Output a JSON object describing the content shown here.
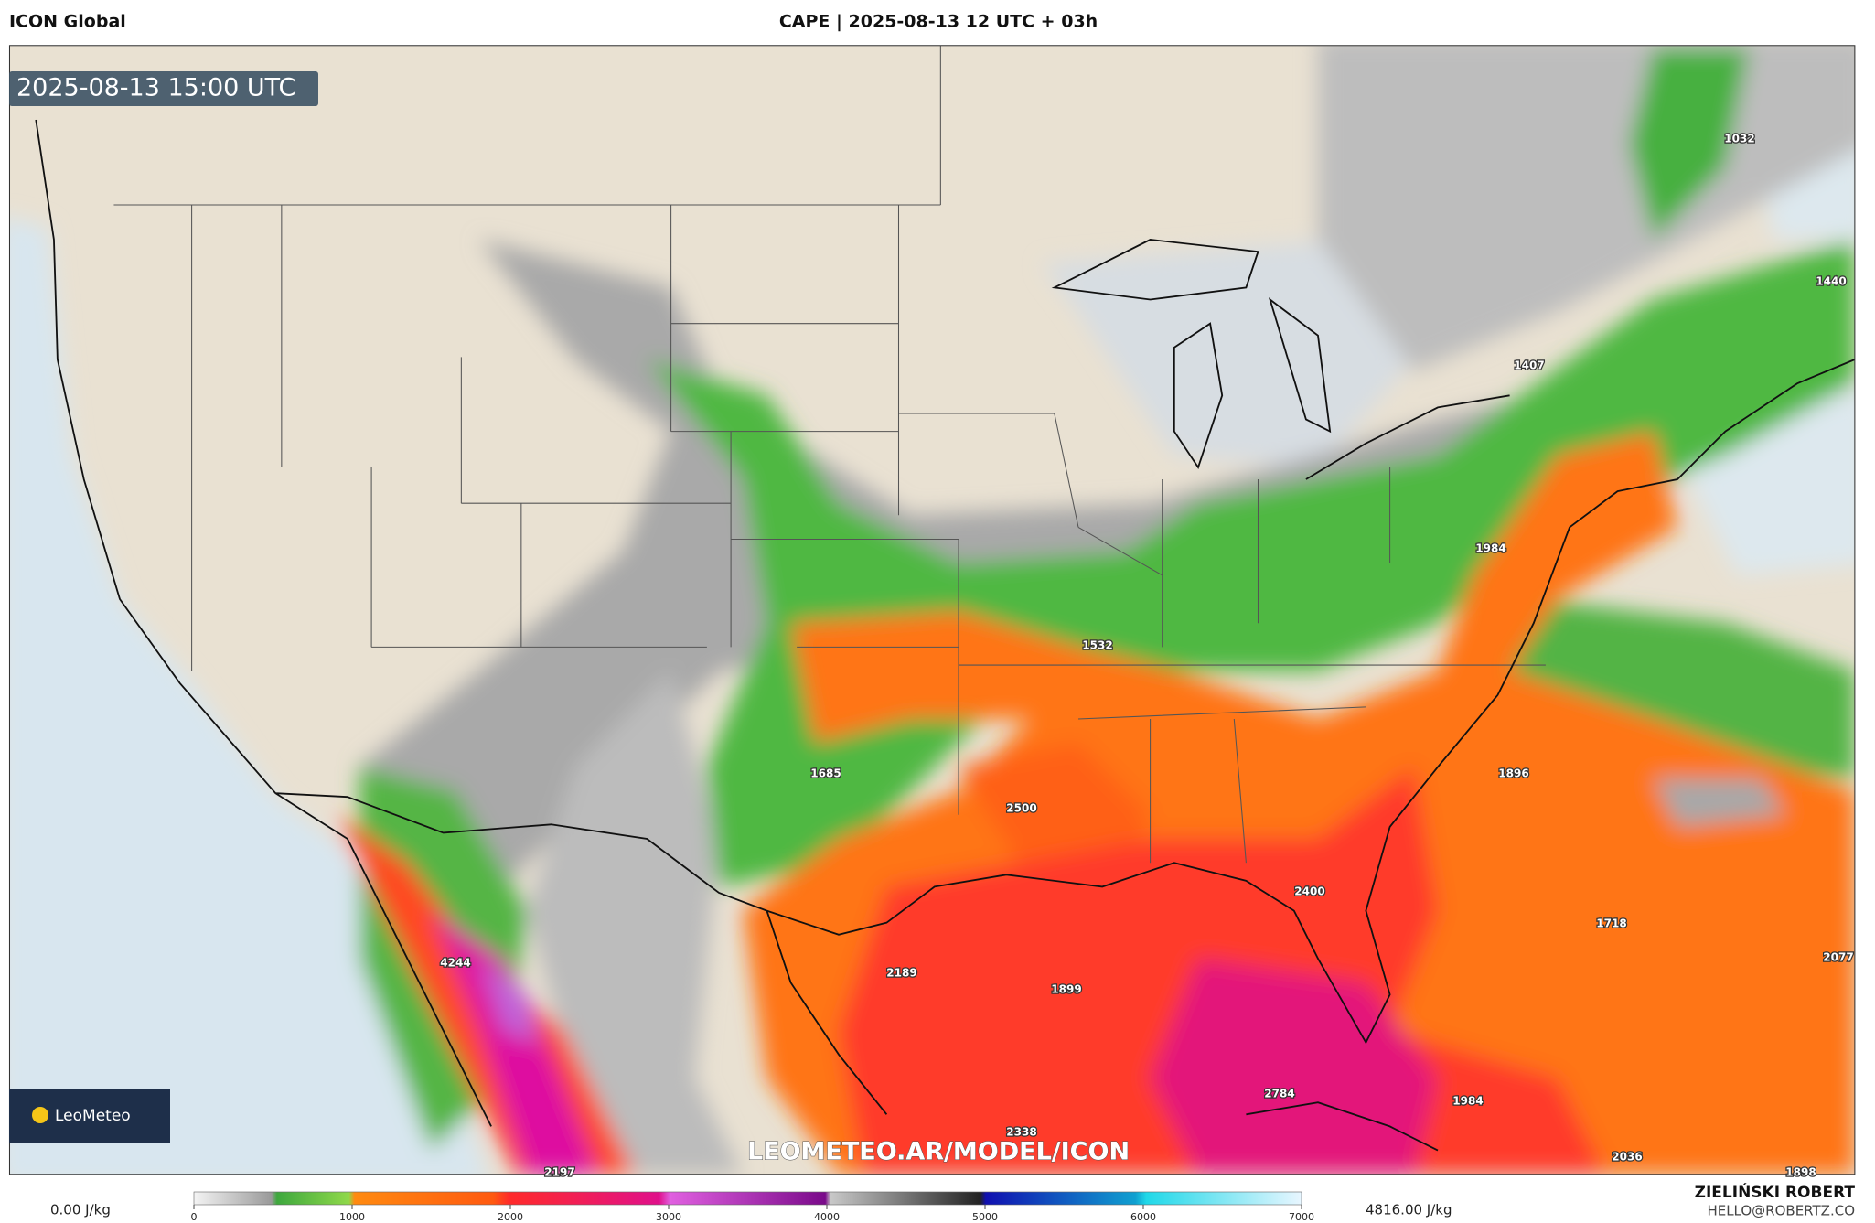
{
  "header": {
    "model": "ICON Global",
    "title": "CAPE | 2025-08-13 12 UTC + 03h"
  },
  "map": {
    "valid_time": "2025-08-13 15:00 UTC",
    "watermark": "LEOMETEO.AR/MODEL/ICON",
    "logo": "LeoMeteo",
    "point_values": [
      1032,
      1440,
      1407,
      1984,
      1532,
      1685,
      2500,
      1896,
      2400,
      1718,
      2077,
      4244,
      2189,
      1899,
      2784,
      1984,
      2338,
      2197,
      2036,
      1898
    ]
  },
  "colorbar": {
    "min_label": "0.00 J/kg",
    "max_label": "4816.00 J/kg",
    "range": [
      0,
      7000
    ],
    "ticks": [
      0,
      1000,
      2000,
      3000,
      4000,
      5000,
      6000,
      7000
    ]
  },
  "credit": {
    "author": "ZIELIŃSKI ROBERT",
    "email": "HELLO@ROBERTZ.CO"
  }
}
